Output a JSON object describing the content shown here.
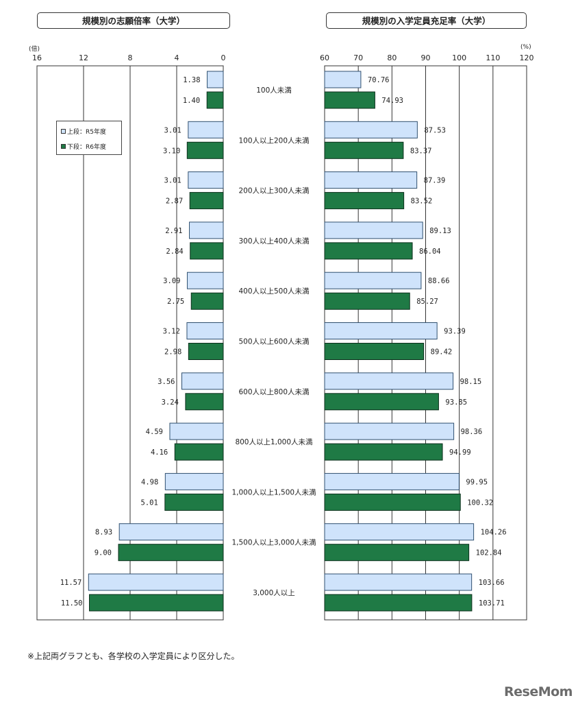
{
  "titles": {
    "left": "規模別の志願倍率（大学）",
    "right": "規模別の入学定員充足率（大学）"
  },
  "units": {
    "left": "(倍)",
    "right": "(%)"
  },
  "legend": {
    "r5": "上段：R5年度",
    "r6": "下段：R6年度"
  },
  "colors": {
    "r5_fill": "#cfe3fb",
    "r5_stroke": "#2f4f6f",
    "r6_fill": "#1f7a45",
    "r6_stroke": "#0c2f1c"
  },
  "footnote": "※上記両グラフとも、各学校の入学定員により区分した。",
  "watermark": "ReseMom",
  "chart_data": [
    {
      "type": "bar",
      "orientation": "horizontal-reversed",
      "title": "規模別の志願倍率（大学）",
      "unit": "(倍)",
      "xlim": [
        0,
        16
      ],
      "ticks": [
        "16",
        "12",
        "8",
        "4",
        "0"
      ],
      "tick_values": [
        16,
        12,
        8,
        4,
        0
      ],
      "categories": [
        "100人未満",
        "100人以上200人未満",
        "200人以上300人未満",
        "300人以上400人未満",
        "400人以上500人未満",
        "500人以上600人未満",
        "600人以上800人未満",
        "800人以上1,000人未満",
        "1,000人以上1,500人未満",
        "1,500人以上3,000人未満",
        "3,000人以上"
      ],
      "series": [
        {
          "name": "R5年度",
          "values": [
            1.38,
            3.01,
            3.01,
            2.91,
            3.09,
            3.12,
            3.56,
            4.59,
            4.98,
            8.93,
            11.57
          ],
          "labels": [
            "1.38",
            "3.01",
            "3.01",
            "2.91",
            "3.09",
            "3.12",
            "3.56",
            "4.59",
            "4.98",
            "8.93",
            "11.57"
          ]
        },
        {
          "name": "R6年度",
          "values": [
            1.4,
            3.1,
            2.87,
            2.84,
            2.75,
            2.98,
            3.24,
            4.16,
            5.01,
            9.0,
            11.5
          ],
          "labels": [
            "1.40",
            "3.10",
            "2.87",
            "2.84",
            "2.75",
            "2.98",
            "3.24",
            "4.16",
            "5.01",
            "9.00",
            "11.50"
          ]
        }
      ]
    },
    {
      "type": "bar",
      "orientation": "horizontal",
      "title": "規模別の入学定員充足率（大学）",
      "unit": "(%)",
      "xlim": [
        60,
        120
      ],
      "ticks": [
        "60",
        "70",
        "80",
        "90",
        "100",
        "110",
        "120"
      ],
      "tick_values": [
        60,
        70,
        80,
        90,
        100,
        110,
        120
      ],
      "categories": [
        "100人未満",
        "100人以上200人未満",
        "200人以上300人未満",
        "300人以上400人未満",
        "400人以上500人未満",
        "500人以上600人未満",
        "600人以上800人未満",
        "800人以上1,000人未満",
        "1,000人以上1,500人未満",
        "1,500人以上3,000人未満",
        "3,000人以上"
      ],
      "series": [
        {
          "name": "R5年度",
          "values": [
            70.76,
            87.53,
            87.39,
            89.13,
            88.66,
            93.39,
            98.15,
            98.36,
            99.95,
            104.26,
            103.66
          ],
          "labels": [
            "70.76",
            "87.53",
            "87.39",
            "89.13",
            "88.66",
            "93.39",
            "98.15",
            "98.36",
            "99.95",
            "104.26",
            "103.66"
          ]
        },
        {
          "name": "R6年度",
          "values": [
            74.93,
            83.37,
            83.52,
            86.04,
            85.27,
            89.42,
            93.85,
            94.99,
            100.32,
            102.84,
            103.71
          ],
          "labels": [
            "74.93",
            "83.37",
            "83.52",
            "86.04",
            "85.27",
            "89.42",
            "93.85",
            "94.99",
            "100.32",
            "102.84",
            "103.71"
          ]
        }
      ]
    }
  ]
}
